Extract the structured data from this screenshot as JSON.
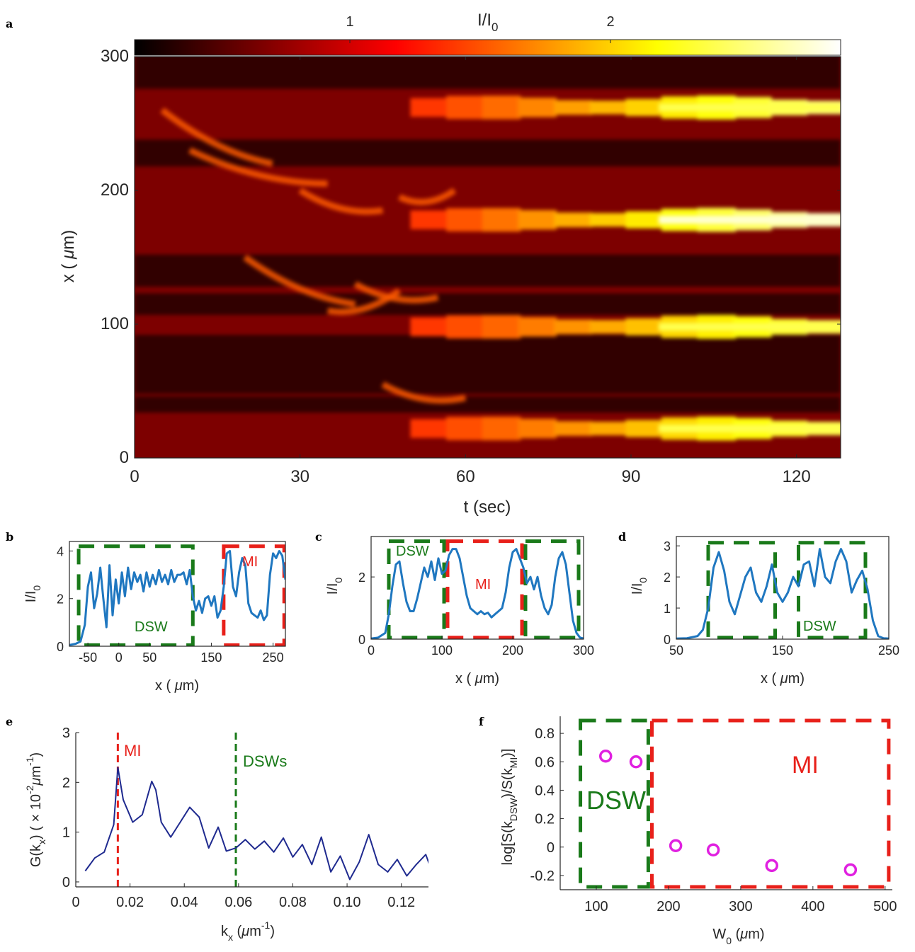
{
  "panel_labels": {
    "a": "a",
    "b": "b",
    "c": "c",
    "d": "d",
    "e": "e",
    "f": "f"
  },
  "colors": {
    "curve": "#1f77c0",
    "curve_e": "#1f2a8f",
    "dsw": "#1a7a1a",
    "mi": "#e8201a",
    "marker": "#e020e0"
  },
  "chart_data": [
    {
      "panel": "a",
      "type": "heatmap",
      "colorbar": {
        "label_main": "I/I",
        "label_sub": "0",
        "ticks": [
          1,
          2
        ],
        "tick_labels": [
          "1",
          "2"
        ],
        "range": [
          0,
          2.8
        ]
      },
      "xlabel": "t (sec)",
      "ylabel_pre": "x ( ",
      "ylabel_mu": "μ",
      "ylabel_post": "m)",
      "xlim": [
        0,
        128
      ],
      "ylim": [
        0,
        300
      ],
      "xticks": [
        0,
        30,
        60,
        90,
        120
      ],
      "xtick_labels": [
        "0",
        "30",
        "60",
        "90",
        "120"
      ],
      "yticks": [
        0,
        100,
        200,
        300
      ],
      "ytick_labels": [
        "0",
        "100",
        "200",
        "300"
      ],
      "bright_filaments_x_um": [
        262,
        178,
        98,
        22
      ]
    },
    {
      "panel": "b",
      "type": "line",
      "xlabel_pre": "x ( ",
      "xlabel_mu": "μ",
      "xlabel_post": "m)",
      "ylabel_main": "I/I",
      "ylabel_sub": "0",
      "xlim": [
        -80,
        270
      ],
      "ylim": [
        0,
        4.4
      ],
      "xticks": [
        -50,
        0,
        50,
        150,
        250
      ],
      "xtick_labels": [
        "-50",
        "0",
        "50",
        "150",
        "250"
      ],
      "yticks": [
        0,
        2,
        4
      ],
      "ytick_labels": [
        "0",
        "2",
        "4"
      ],
      "x": [
        -80,
        -70,
        -62,
        -55,
        -50,
        -45,
        -40,
        -35,
        -30,
        -25,
        -20,
        -15,
        -10,
        -5,
        0,
        5,
        10,
        15,
        20,
        25,
        30,
        35,
        40,
        45,
        50,
        55,
        60,
        65,
        70,
        75,
        80,
        85,
        90,
        95,
        100,
        105,
        110,
        115,
        120,
        125,
        130,
        135,
        140,
        145,
        150,
        155,
        160,
        165,
        170,
        175,
        180,
        185,
        190,
        195,
        200,
        205,
        210,
        215,
        220,
        225,
        230,
        235,
        240,
        245,
        250,
        255,
        260,
        265,
        270
      ],
      "y": [
        0.05,
        0.1,
        0.2,
        0.9,
        2.5,
        3.1,
        1.6,
        2.2,
        3.3,
        2.0,
        0.8,
        3.4,
        1.3,
        2.8,
        1.8,
        3.1,
        2.1,
        3.3,
        2.4,
        3.1,
        2.7,
        3.0,
        2.3,
        3.1,
        2.5,
        3.0,
        2.6,
        3.2,
        2.7,
        3.0,
        2.6,
        3.2,
        2.7,
        3.0,
        3.0,
        3.1,
        2.6,
        3.2,
        2.1,
        1.5,
        1.9,
        1.4,
        2.0,
        2.1,
        1.7,
        2.1,
        1.2,
        1.5,
        2.5,
        3.9,
        4.0,
        2.5,
        2.1,
        3.1,
        3.7,
        3.4,
        1.8,
        1.4,
        1.3,
        1.2,
        1.5,
        1.1,
        1.3,
        3.0,
        3.9,
        3.7,
        4.0,
        3.8,
        2.8
      ],
      "boxes": [
        {
          "kind": "DSW",
          "x0": -65,
          "x1": 120,
          "y0": 0.05,
          "y1": 4.2
        },
        {
          "kind": "MI",
          "x0": 170,
          "x1": 268,
          "y0": 0.05,
          "y1": 4.2
        }
      ],
      "annotations": {
        "dsw": "DSW",
        "mi": "MI"
      }
    },
    {
      "panel": "c",
      "type": "line",
      "xlabel_pre": "x ( ",
      "xlabel_mu": "μ",
      "xlabel_post": "m)",
      "ylabel_main": "I/I",
      "ylabel_sub": "0",
      "xlim": [
        0,
        300
      ],
      "ylim": [
        0,
        3.3
      ],
      "xticks": [
        0,
        100,
        200,
        300
      ],
      "xtick_labels": [
        "0",
        "100",
        "200",
        "300"
      ],
      "yticks": [
        0,
        2
      ],
      "ytick_labels": [
        "0",
        "2"
      ],
      "x": [
        0,
        10,
        20,
        25,
        30,
        35,
        40,
        45,
        50,
        55,
        60,
        65,
        70,
        75,
        80,
        85,
        90,
        95,
        100,
        105,
        110,
        115,
        120,
        125,
        130,
        135,
        140,
        145,
        150,
        155,
        160,
        165,
        170,
        175,
        180,
        185,
        190,
        195,
        200,
        205,
        210,
        215,
        220,
        225,
        230,
        235,
        240,
        245,
        250,
        255,
        260,
        265,
        270,
        275,
        280,
        285,
        290,
        295,
        300
      ],
      "y": [
        0.02,
        0.05,
        0.2,
        0.8,
        1.7,
        2.4,
        2.5,
        1.8,
        1.2,
        0.9,
        0.9,
        1.3,
        1.8,
        2.3,
        2.0,
        2.5,
        1.9,
        2.6,
        2.1,
        2.2,
        2.7,
        2.9,
        2.9,
        2.6,
        2.0,
        1.4,
        1.0,
        0.9,
        0.8,
        0.9,
        0.8,
        0.85,
        0.7,
        0.8,
        0.9,
        1.0,
        1.5,
        2.3,
        2.8,
        2.9,
        2.6,
        2.3,
        1.8,
        2.0,
        1.6,
        2.0,
        1.4,
        1.0,
        0.8,
        1.1,
        2.0,
        2.6,
        2.8,
        2.4,
        1.5,
        0.6,
        0.2,
        0.05,
        0.02
      ],
      "boxes": [
        {
          "kind": "DSW",
          "x0": 25,
          "x1": 103,
          "y0": 0.05,
          "y1": 3.15
        },
        {
          "kind": "MI",
          "x0": 108,
          "x1": 213,
          "y0": 0.05,
          "y1": 3.15
        },
        {
          "kind": "DSW",
          "x0": 218,
          "x1": 293,
          "y0": 0.05,
          "y1": 3.15
        }
      ],
      "annotations": {
        "dsw": "DSW",
        "mi": "MI"
      }
    },
    {
      "panel": "d",
      "type": "line",
      "xlabel_pre": "x ( ",
      "xlabel_mu": "μ",
      "xlabel_post": "m)",
      "ylabel_main": "I/I",
      "ylabel_sub": "0",
      "xlim": [
        50,
        250
      ],
      "ylim": [
        0,
        3.3
      ],
      "xticks": [
        50,
        150,
        250
      ],
      "xtick_labels": [
        "50",
        "150",
        "250"
      ],
      "yticks": [
        0,
        1,
        2,
        3
      ],
      "ytick_labels": [
        "0",
        "1",
        "2",
        "3"
      ],
      "x": [
        50,
        60,
        70,
        75,
        80,
        85,
        90,
        95,
        100,
        105,
        110,
        115,
        120,
        125,
        130,
        135,
        140,
        145,
        150,
        155,
        160,
        165,
        170,
        175,
        180,
        185,
        190,
        195,
        200,
        205,
        210,
        215,
        220,
        225,
        230,
        235,
        240,
        245,
        250
      ],
      "y": [
        0.02,
        0.03,
        0.1,
        0.3,
        1.0,
        2.3,
        2.8,
        2.2,
        1.2,
        0.8,
        1.4,
        2.0,
        2.3,
        1.5,
        1.2,
        1.7,
        2.4,
        1.5,
        1.2,
        1.5,
        2.0,
        1.7,
        2.4,
        2.5,
        1.7,
        2.9,
        2.0,
        1.8,
        2.5,
        2.9,
        2.5,
        1.5,
        1.9,
        2.2,
        1.6,
        0.6,
        0.1,
        0.03,
        0.02
      ],
      "boxes": [
        {
          "kind": "DSW",
          "x0": 80,
          "x1": 143,
          "y0": 0.05,
          "y1": 3.1
        },
        {
          "kind": "DSW",
          "x0": 165,
          "x1": 228,
          "y0": 0.05,
          "y1": 3.1
        }
      ],
      "annotations": {
        "dsw": "DSW"
      }
    },
    {
      "panel": "e",
      "type": "line",
      "xlabel_main": "k",
      "xlabel_sub": "x",
      "xlabel_post_pre": " (",
      "xlabel_mu": "μ",
      "xlabel_unit": "m",
      "xlabel_sup": "-1",
      "xlabel_close": ")",
      "ylabel_text": "G(k",
      "ylabel_sub": "x",
      "ylabel_mid": ") ( × 10",
      "ylabel_sup1": "-2",
      "ylabel_mu": "μ",
      "ylabel_unit": "m",
      "ylabel_sup2": "-1",
      "ylabel_close": ")",
      "xlim": [
        0,
        0.13
      ],
      "ylim": [
        -0.1,
        3
      ],
      "xticks": [
        0,
        0.02,
        0.04,
        0.06,
        0.08,
        0.1,
        0.12
      ],
      "xtick_labels": [
        "0",
        "0.02",
        "0.04",
        "0.06",
        "0.08",
        "0.10",
        "0.12"
      ],
      "yticks": [
        0,
        1,
        2,
        3
      ],
      "ytick_labels": [
        "0",
        "1",
        "2",
        "3"
      ],
      "x": [
        0.0035,
        0.007,
        0.0105,
        0.014,
        0.0155,
        0.0175,
        0.021,
        0.0245,
        0.028,
        0.0295,
        0.0315,
        0.035,
        0.0385,
        0.042,
        0.0455,
        0.049,
        0.0525,
        0.0555,
        0.059,
        0.0625,
        0.066,
        0.0695,
        0.073,
        0.0765,
        0.08,
        0.0835,
        0.087,
        0.0905,
        0.094,
        0.0975,
        0.101,
        0.1045,
        0.108,
        0.1115,
        0.115,
        0.1185,
        0.122,
        0.1255,
        0.129,
        0.132
      ],
      "y": [
        0.22,
        0.48,
        0.6,
        1.15,
        2.3,
        1.65,
        1.2,
        1.35,
        2.02,
        1.85,
        1.2,
        0.9,
        1.2,
        1.5,
        1.3,
        0.68,
        1.1,
        0.62,
        0.68,
        0.85,
        0.66,
        0.82,
        0.6,
        0.88,
        0.5,
        0.75,
        0.35,
        0.9,
        0.2,
        0.52,
        0.05,
        0.4,
        0.95,
        0.35,
        0.2,
        0.45,
        0.12,
        0.35,
        0.55,
        0.1
      ],
      "vlines": [
        {
          "kind": "MI",
          "x": 0.0155
        },
        {
          "kind": "DSW",
          "x": 0.059
        }
      ],
      "annotations": {
        "mi": "MI",
        "dsw": "DSWs"
      }
    },
    {
      "panel": "f",
      "type": "scatter",
      "xlabel_main": "W",
      "xlabel_sub": "0",
      "xlabel_pre": " (",
      "xlabel_mu": "μ",
      "xlabel_post": "m)",
      "ylabel_a": "log[S(k",
      "ylabel_sub1": "DSW",
      "ylabel_b": ")/S(k",
      "ylabel_sub2": "MI",
      "ylabel_c": ")]",
      "xlim": [
        50,
        510
      ],
      "ylim": [
        -0.3,
        0.92
      ],
      "xticks": [
        100,
        200,
        300,
        400,
        500
      ],
      "xtick_labels": [
        "100",
        "200",
        "300",
        "400",
        "500"
      ],
      "yticks": [
        -0.2,
        0,
        0.2,
        0.4,
        0.6,
        0.8
      ],
      "ytick_labels": [
        "-0.2",
        "0",
        "0.2",
        "0.4",
        "0.6",
        "0.8"
      ],
      "x": [
        113,
        155,
        210,
        262,
        343,
        452
      ],
      "y": [
        0.64,
        0.6,
        0.01,
        -0.02,
        -0.13,
        -0.16
      ],
      "boxes": [
        {
          "kind": "DSW",
          "x0": 78,
          "x1": 172,
          "y0": -0.28,
          "y1": 0.89
        },
        {
          "kind": "MI",
          "x0": 177,
          "x1": 505,
          "y0": -0.28,
          "y1": 0.89
        }
      ],
      "annotations": {
        "dsw": "DSW",
        "mi": "MI"
      }
    }
  ]
}
